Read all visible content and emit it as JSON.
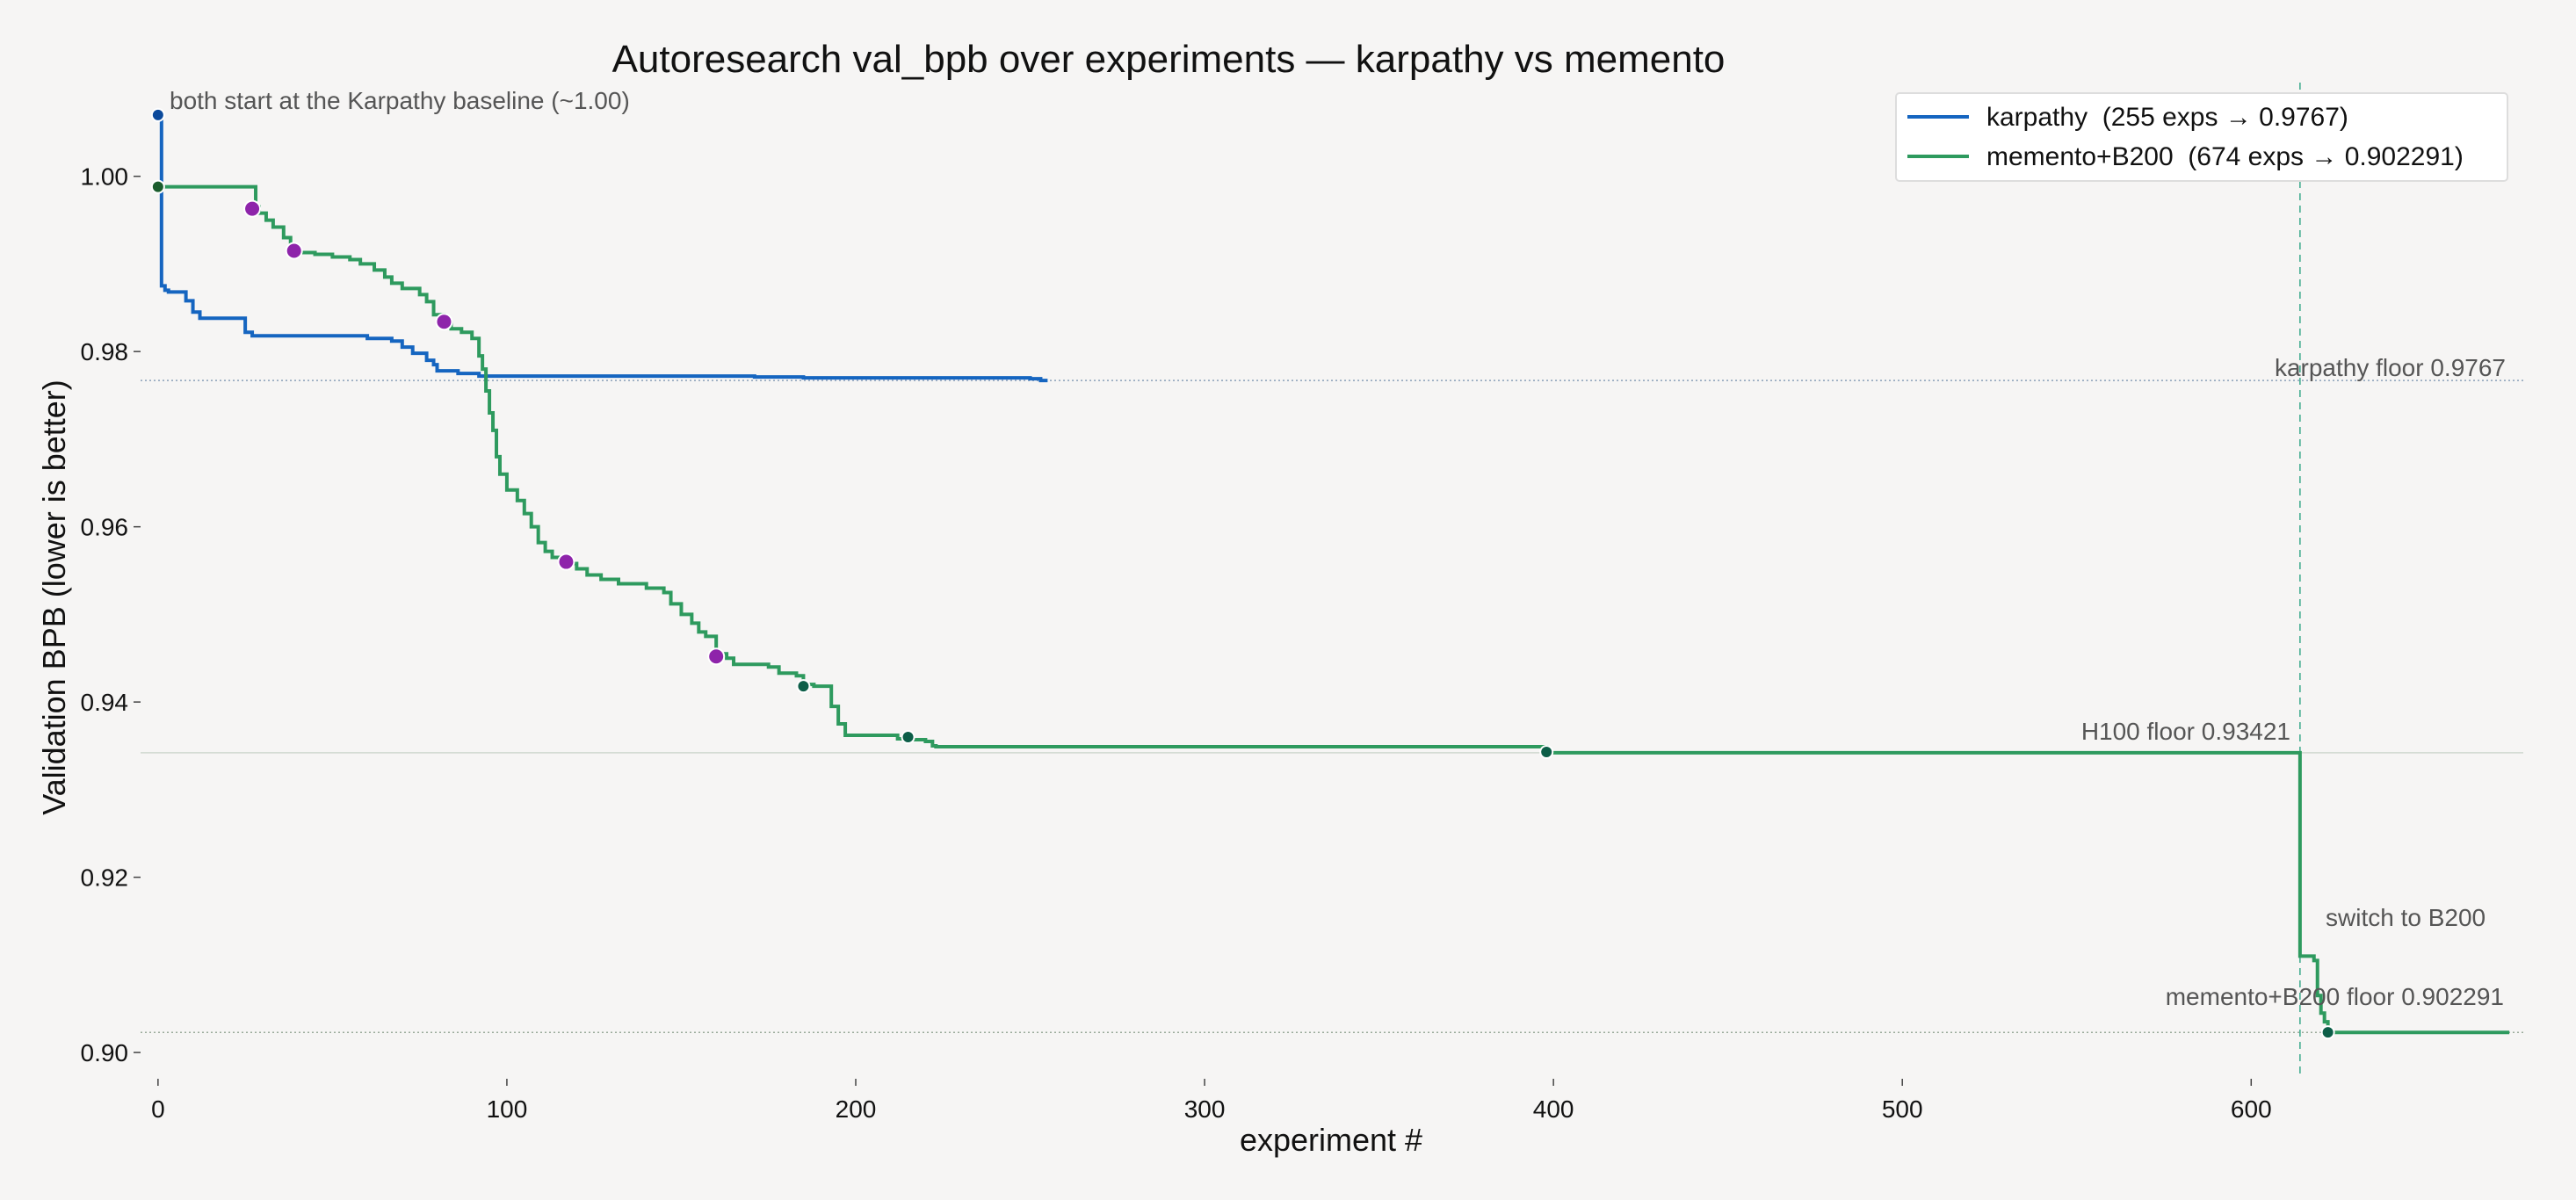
{
  "chart_data": {
    "type": "line",
    "title": "Autoresearch val_bpb over experiments — karpathy vs memento",
    "xlabel": "experiment #",
    "ylabel": "Validation BPB (lower is better)",
    "xlim": [
      -5,
      678
    ],
    "ylim": [
      0.897,
      1.0117
    ],
    "xticks": [
      0,
      100,
      200,
      300,
      400,
      500,
      600
    ],
    "yticks": [
      0.9,
      0.92,
      0.94,
      0.96,
      0.98,
      1.0
    ],
    "xtick_labels": [
      "0",
      "100",
      "200",
      "300",
      "400",
      "500",
      "600"
    ],
    "ytick_labels": [
      "0.90",
      "0.92",
      "0.94",
      "0.96",
      "0.98",
      "1.00"
    ],
    "grid": false,
    "legend_position": "top-right",
    "series": [
      {
        "name": "karpathy  (255 exps → 0.9767)",
        "color": "#1565c0",
        "points": [
          [
            0,
            1.007
          ],
          [
            1,
            0.9875
          ],
          [
            2,
            0.987
          ],
          [
            3,
            0.9868
          ],
          [
            8,
            0.9858
          ],
          [
            10,
            0.9845
          ],
          [
            12,
            0.9838
          ],
          [
            25,
            0.9822
          ],
          [
            27,
            0.9818
          ],
          [
            55,
            0.9818
          ],
          [
            60,
            0.9815
          ],
          [
            67,
            0.9812
          ],
          [
            70,
            0.9805
          ],
          [
            73,
            0.9798
          ],
          [
            77,
            0.979
          ],
          [
            79,
            0.9785
          ],
          [
            80,
            0.9778
          ],
          [
            86,
            0.9775
          ],
          [
            92,
            0.9772
          ],
          [
            170,
            0.9772
          ],
          [
            171,
            0.9771
          ],
          [
            185,
            0.977
          ],
          [
            250,
            0.9769
          ],
          [
            253,
            0.9767
          ],
          [
            255,
            0.9767
          ]
        ]
      },
      {
        "name": "memento+B200  (674 exps → 0.902291)",
        "color": "#2e9a5e",
        "points": [
          [
            0,
            0.9988
          ],
          [
            27,
            0.9988
          ],
          [
            28,
            0.9965
          ],
          [
            29,
            0.9958
          ],
          [
            31,
            0.995
          ],
          [
            33,
            0.9942
          ],
          [
            36,
            0.993
          ],
          [
            38,
            0.9918
          ],
          [
            40,
            0.9913
          ],
          [
            45,
            0.9911
          ],
          [
            50,
            0.9908
          ],
          [
            55,
            0.9905
          ],
          [
            58,
            0.99
          ],
          [
            62,
            0.9893
          ],
          [
            65,
            0.9885
          ],
          [
            67,
            0.9878
          ],
          [
            70,
            0.9872
          ],
          [
            75,
            0.9865
          ],
          [
            77,
            0.9857
          ],
          [
            79,
            0.9842
          ],
          [
            82,
            0.9833
          ],
          [
            84,
            0.9826
          ],
          [
            87,
            0.9822
          ],
          [
            90,
            0.9815
          ],
          [
            92,
            0.9795
          ],
          [
            93,
            0.978
          ],
          [
            94,
            0.9755
          ],
          [
            95,
            0.973
          ],
          [
            96,
            0.971
          ],
          [
            97,
            0.968
          ],
          [
            98,
            0.966
          ],
          [
            100,
            0.9642
          ],
          [
            103,
            0.963
          ],
          [
            105,
            0.9615
          ],
          [
            107,
            0.96
          ],
          [
            109,
            0.9582
          ],
          [
            111,
            0.9572
          ],
          [
            113,
            0.9565
          ],
          [
            117,
            0.9558
          ],
          [
            120,
            0.9552
          ],
          [
            123,
            0.9545
          ],
          [
            127,
            0.954
          ],
          [
            132,
            0.9535
          ],
          [
            140,
            0.953
          ],
          [
            145,
            0.9525
          ],
          [
            147,
            0.9512
          ],
          [
            150,
            0.95
          ],
          [
            153,
            0.949
          ],
          [
            155,
            0.948
          ],
          [
            157,
            0.9475
          ],
          [
            160,
            0.9455
          ],
          [
            163,
            0.945
          ],
          [
            165,
            0.9443
          ],
          [
            175,
            0.944
          ],
          [
            178,
            0.9433
          ],
          [
            183,
            0.943
          ],
          [
            185,
            0.942
          ],
          [
            188,
            0.9418
          ],
          [
            192,
            0.9418
          ],
          [
            193,
            0.9395
          ],
          [
            195,
            0.9375
          ],
          [
            197,
            0.9362
          ],
          [
            212,
            0.9358
          ],
          [
            215,
            0.9357
          ],
          [
            220,
            0.9355
          ],
          [
            222,
            0.935
          ],
          [
            223,
            0.9349
          ],
          [
            396,
            0.9349
          ],
          [
            398,
            0.93421
          ],
          [
            613,
            0.93421
          ],
          [
            614,
            0.911
          ],
          [
            618,
            0.9105
          ],
          [
            619,
            0.9065
          ],
          [
            620,
            0.9045
          ],
          [
            621,
            0.9035
          ],
          [
            622,
            0.902291
          ],
          [
            674,
            0.902291
          ]
        ]
      }
    ],
    "markers": [
      {
        "x": 0,
        "y": 1.007,
        "color": "#0b4a9c"
      },
      {
        "x": 0,
        "y": 0.9988,
        "color": "#1a5c2c"
      },
      {
        "x": 27,
        "y": 0.9963,
        "color": "#8e24aa"
      },
      {
        "x": 39,
        "y": 0.9915,
        "color": "#8e24aa"
      },
      {
        "x": 82,
        "y": 0.9834,
        "color": "#8e24aa"
      },
      {
        "x": 117,
        "y": 0.956,
        "color": "#8e24aa"
      },
      {
        "x": 160,
        "y": 0.9452,
        "color": "#8e24aa"
      },
      {
        "x": 185,
        "y": 0.9418,
        "color": "#0d5e48"
      },
      {
        "x": 215,
        "y": 0.936,
        "color": "#0d5e48"
      },
      {
        "x": 398,
        "y": 0.9343,
        "color": "#0d5e48"
      },
      {
        "x": 622,
        "y": 0.9023,
        "color": "#0d5e48"
      }
    ],
    "reference_lines": [
      {
        "axis": "y",
        "value": 0.9767,
        "color": "#8aa0b8",
        "style": "dotted"
      },
      {
        "axis": "y",
        "value": 0.93421,
        "color": "#cfd8cf",
        "style": "solid"
      },
      {
        "axis": "y",
        "value": 0.902291,
        "color": "#9aab9a",
        "style": "dotted"
      },
      {
        "axis": "x",
        "value": 614,
        "color": "#3aa88a",
        "style": "dashed"
      }
    ],
    "annotations": [
      {
        "id": "baseline",
        "text": "both start at the Karpathy baseline (~1.00)",
        "color": "#555555"
      },
      {
        "id": "karpathy-floor",
        "text": "karpathy floor 0.9767",
        "color": "#1565c0"
      },
      {
        "id": "h100-floor",
        "text": "H100 floor 0.93421",
        "color": "#3f8f55"
      },
      {
        "id": "switch",
        "text": "switch to B200",
        "color": "#159080"
      },
      {
        "id": "memento-floor",
        "text": "memento+B200 floor 0.902291",
        "color": "#1e5e1e"
      }
    ]
  }
}
